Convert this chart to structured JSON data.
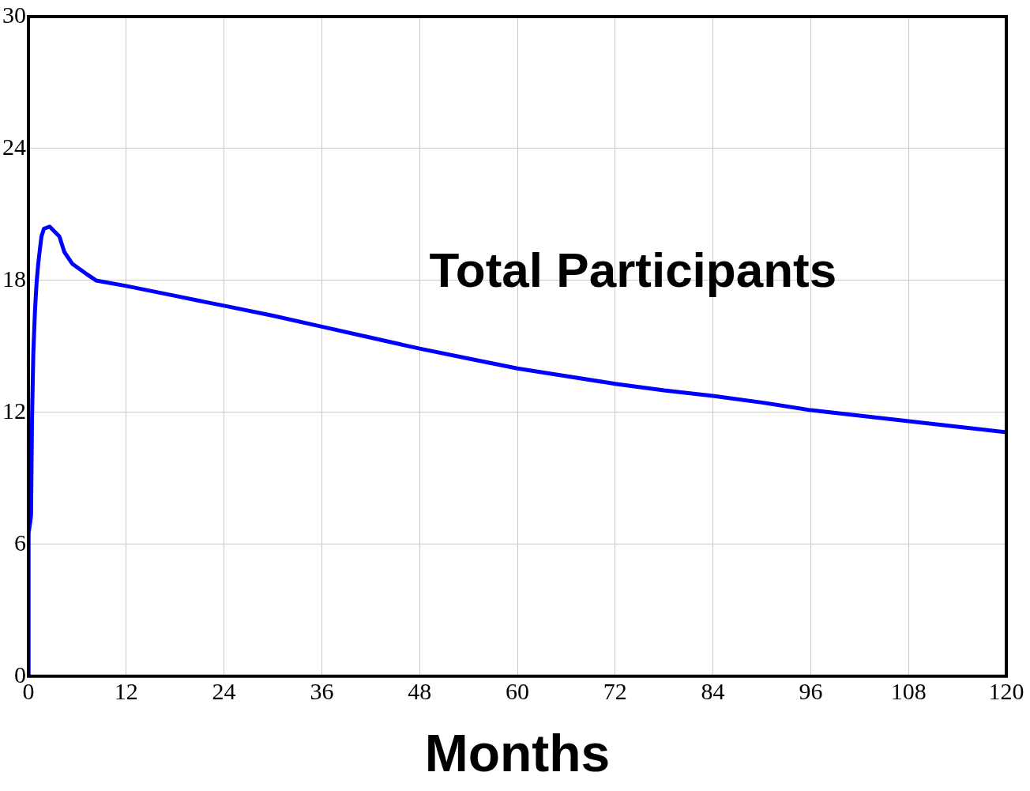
{
  "chart_data": {
    "type": "line",
    "xlabel": "Months",
    "x": [
      0,
      0.02,
      0.32,
      0.44,
      0.6,
      0.8,
      1.0,
      1.2,
      1.4,
      1.6,
      1.9,
      2.6,
      3.8,
      4.4,
      5.4,
      7.1,
      8.3,
      12,
      18,
      24,
      30,
      36,
      42,
      48,
      54,
      60,
      66,
      72,
      78,
      84,
      90,
      96,
      102,
      108,
      114,
      120
    ],
    "series": [
      {
        "name": "Total Participants",
        "color": "#0000ff",
        "values": [
          0,
          6.5,
          7.3,
          11.7,
          14.7,
          16.6,
          17.9,
          18.75,
          19.4,
          20.0,
          20.35,
          20.45,
          20.0,
          19.3,
          18.75,
          18.3,
          18.0,
          17.75,
          17.3,
          16.85,
          16.4,
          15.9,
          15.4,
          14.9,
          14.45,
          14.0,
          13.65,
          13.3,
          13.0,
          12.75,
          12.45,
          12.1,
          11.85,
          11.6,
          11.35,
          11.1
        ]
      }
    ],
    "xlim": [
      0,
      120
    ],
    "xticks": [
      0,
      12,
      24,
      36,
      48,
      60,
      72,
      84,
      96,
      108,
      120
    ],
    "ylim": [
      0,
      30
    ],
    "yticks": [
      0,
      6,
      12,
      18,
      24,
      30
    ],
    "grid": true,
    "legend": false,
    "marker": "none",
    "line_style": "solid"
  }
}
